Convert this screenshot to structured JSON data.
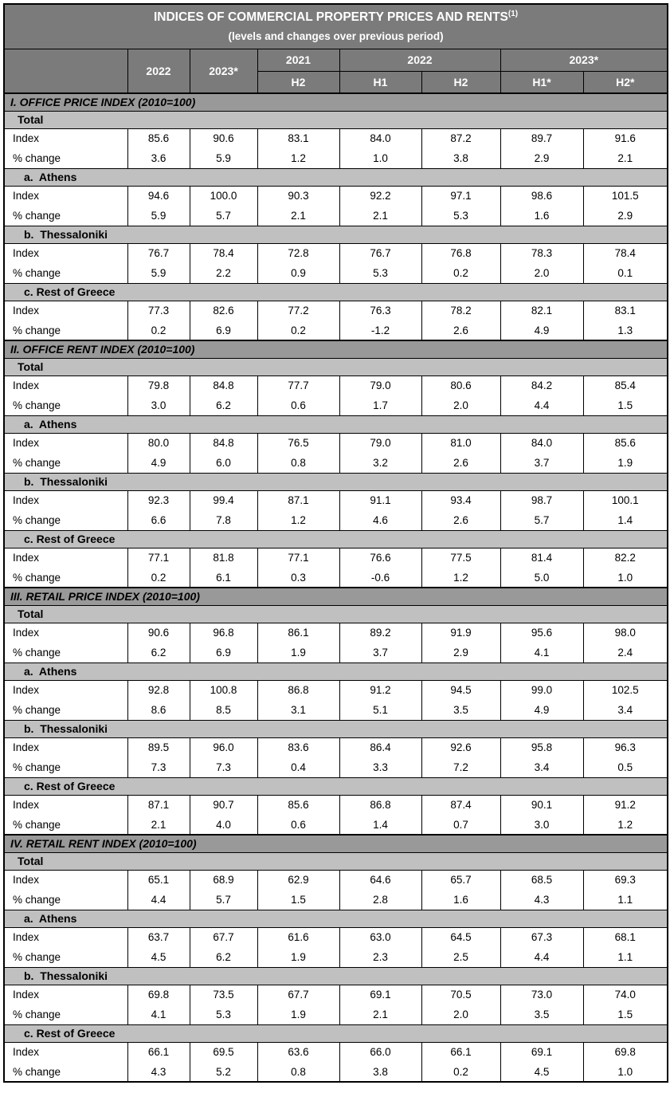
{
  "header": {
    "title": "INDICES OF COMMERCIAL PROPERTY PRICES AND RENTS",
    "title_superscript": "(1)",
    "subtitle": "(levels and changes over previous period)"
  },
  "columns": {
    "annual": [
      "2022",
      "2023*"
    ],
    "groups": [
      {
        "label": "2021",
        "cols": [
          "H2"
        ]
      },
      {
        "label": "2022",
        "cols": [
          "H1",
          "H2"
        ]
      },
      {
        "label": "2023*",
        "cols": [
          "H1*",
          "H2*"
        ]
      }
    ]
  },
  "row_labels": {
    "index": "Index",
    "pct_change": "% change"
  },
  "colors": {
    "header_bg": "#7b7b7b",
    "section_bg": "#999999",
    "subsection_bg": "#c0c0c0",
    "border": "#000000",
    "header_text": "#ffffff",
    "data_text": "#000000"
  },
  "sections": [
    {
      "heading": "I. OFFICE PRICE INDEX (2010=100)",
      "groups": [
        {
          "label": "Total",
          "index": [
            "85.6",
            "90.6",
            "83.1",
            "84.0",
            "87.2",
            "89.7",
            "91.6"
          ],
          "pct_change": [
            "3.6",
            "5.9",
            "1.2",
            "1.0",
            "3.8",
            "2.9",
            "2.1"
          ]
        },
        {
          "label": "a.  Athens",
          "index": [
            "94.6",
            "100.0",
            "90.3",
            "92.2",
            "97.1",
            "98.6",
            "101.5"
          ],
          "pct_change": [
            "5.9",
            "5.7",
            "2.1",
            "2.1",
            "5.3",
            "1.6",
            "2.9"
          ]
        },
        {
          "label": "b.  Thessaloniki",
          "index": [
            "76.7",
            "78.4",
            "72.8",
            "76.7",
            "76.8",
            "78.3",
            "78.4"
          ],
          "pct_change": [
            "5.9",
            "2.2",
            "0.9",
            "5.3",
            "0.2",
            "2.0",
            "0.1"
          ]
        },
        {
          "label": "c. Rest of Greece",
          "index": [
            "77.3",
            "82.6",
            "77.2",
            "76.3",
            "78.2",
            "82.1",
            "83.1"
          ],
          "pct_change": [
            "0.2",
            "6.9",
            "0.2",
            "-1.2",
            "2.6",
            "4.9",
            "1.3"
          ]
        }
      ]
    },
    {
      "heading": "II. OFFICE RENT INDEX (2010=100)",
      "groups": [
        {
          "label": "Total",
          "index": [
            "79.8",
            "84.8",
            "77.7",
            "79.0",
            "80.6",
            "84.2",
            "85.4"
          ],
          "pct_change": [
            "3.0",
            "6.2",
            "0.6",
            "1.7",
            "2.0",
            "4.4",
            "1.5"
          ]
        },
        {
          "label": "a.  Athens",
          "index": [
            "80.0",
            "84.8",
            "76.5",
            "79.0",
            "81.0",
            "84.0",
            "85.6"
          ],
          "pct_change": [
            "4.9",
            "6.0",
            "0.8",
            "3.2",
            "2.6",
            "3.7",
            "1.9"
          ]
        },
        {
          "label": "b.  Thessaloniki",
          "index": [
            "92.3",
            "99.4",
            "87.1",
            "91.1",
            "93.4",
            "98.7",
            "100.1"
          ],
          "pct_change": [
            "6.6",
            "7.8",
            "1.2",
            "4.6",
            "2.6",
            "5.7",
            "1.4"
          ]
        },
        {
          "label": "c. Rest of Greece",
          "index": [
            "77.1",
            "81.8",
            "77.1",
            "76.6",
            "77.5",
            "81.4",
            "82.2"
          ],
          "pct_change": [
            "0.2",
            "6.1",
            "0.3",
            "-0.6",
            "1.2",
            "5.0",
            "1.0"
          ]
        }
      ]
    },
    {
      "heading": "III. RETAIL PRICE INDEX (2010=100)",
      "groups": [
        {
          "label": "Total",
          "index": [
            "90.6",
            "96.8",
            "86.1",
            "89.2",
            "91.9",
            "95.6",
            "98.0"
          ],
          "pct_change": [
            "6.2",
            "6.9",
            "1.9",
            "3.7",
            "2.9",
            "4.1",
            "2.4"
          ]
        },
        {
          "label": "a.  Athens",
          "index": [
            "92.8",
            "100.8",
            "86.8",
            "91.2",
            "94.5",
            "99.0",
            "102.5"
          ],
          "pct_change": [
            "8.6",
            "8.5",
            "3.1",
            "5.1",
            "3.5",
            "4.9",
            "3.4"
          ]
        },
        {
          "label": "b.  Thessaloniki",
          "index": [
            "89.5",
            "96.0",
            "83.6",
            "86.4",
            "92.6",
            "95.8",
            "96.3"
          ],
          "pct_change": [
            "7.3",
            "7.3",
            "0.4",
            "3.3",
            "7.2",
            "3.4",
            "0.5"
          ]
        },
        {
          "label": "c. Rest of Greece",
          "index": [
            "87.1",
            "90.7",
            "85.6",
            "86.8",
            "87.4",
            "90.1",
            "91.2"
          ],
          "pct_change": [
            "2.1",
            "4.0",
            "0.6",
            "1.4",
            "0.7",
            "3.0",
            "1.2"
          ]
        }
      ]
    },
    {
      "heading": "IV. RETAIL RENT INDEX (2010=100)",
      "groups": [
        {
          "label": "Total",
          "index": [
            "65.1",
            "68.9",
            "62.9",
            "64.6",
            "65.7",
            "68.5",
            "69.3"
          ],
          "pct_change": [
            "4.4",
            "5.7",
            "1.5",
            "2.8",
            "1.6",
            "4.3",
            "1.1"
          ]
        },
        {
          "label": "a.  Athens",
          "index": [
            "63.7",
            "67.7",
            "61.6",
            "63.0",
            "64.5",
            "67.3",
            "68.1"
          ],
          "pct_change": [
            "4.5",
            "6.2",
            "1.9",
            "2.3",
            "2.5",
            "4.4",
            "1.1"
          ]
        },
        {
          "label": "b.  Thessaloniki",
          "index": [
            "69.8",
            "73.5",
            "67.7",
            "69.1",
            "70.5",
            "73.0",
            "74.0"
          ],
          "pct_change": [
            "4.1",
            "5.3",
            "1.9",
            "2.1",
            "2.0",
            "3.5",
            "1.5"
          ]
        },
        {
          "label": "c. Rest of Greece",
          "index": [
            "66.1",
            "69.5",
            "63.6",
            "66.0",
            "66.1",
            "69.1",
            "69.8"
          ],
          "pct_change": [
            "4.3",
            "5.2",
            "0.8",
            "3.8",
            "0.2",
            "4.5",
            "1.0"
          ]
        }
      ]
    }
  ]
}
